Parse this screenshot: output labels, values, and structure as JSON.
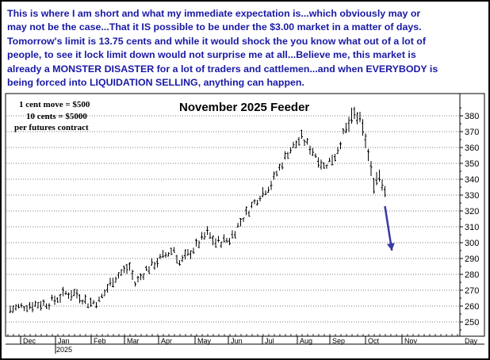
{
  "annotation": {
    "lines": [
      "This is where I am short and what my immediate expectation is...which obviously may or",
      "may not be the case...That it IS possible to be under the $3.00 market in a  matter of days.",
      "Tomorrow's limit is 13.75 cents and while it would shock the you know what out of a lot of",
      "people, to see it lock limit down would not surprise me at all...Believe me, this market is",
      "already a MONSTER DISASTER for a lot of traders and cattlemen...and when EVERYBODY is",
      "being forced into LIQUIDATION SELLING, anything can happen."
    ],
    "color": "#1a1aa6"
  },
  "chart_data": {
    "type": "ohlc",
    "title": "November 2025 Feeder",
    "info_lines": [
      "1 cent move = $500",
      "10 cents = $5000",
      "per futures contract"
    ],
    "ylim": [
      242,
      391
    ],
    "y_ticks": [
      250,
      260,
      270,
      280,
      290,
      300,
      310,
      320,
      330,
      340,
      350,
      360,
      370,
      380
    ],
    "x_period_label": "Day",
    "x_year_label": "2025",
    "months": [
      "Dec",
      "Jan",
      "Feb",
      "Mar",
      "Apr",
      "May",
      "Jun",
      "Jul",
      "Aug",
      "Sep",
      "Oct",
      "Nov"
    ],
    "series_color": "#000000",
    "price_path": [
      {
        "x": 0,
        "y": 258
      },
      {
        "x": 8,
        "y": 261
      },
      {
        "x": 14,
        "y": 262
      },
      {
        "x": 20,
        "y": 268
      },
      {
        "x": 24,
        "y": 268
      },
      {
        "x": 28,
        "y": 262
      },
      {
        "x": 32,
        "y": 263
      },
      {
        "x": 37,
        "y": 277
      },
      {
        "x": 43,
        "y": 285
      },
      {
        "x": 45,
        "y": 274
      },
      {
        "x": 49,
        "y": 283
      },
      {
        "x": 55,
        "y": 291
      },
      {
        "x": 59,
        "y": 296
      },
      {
        "x": 61,
        "y": 287
      },
      {
        "x": 66,
        "y": 296
      },
      {
        "x": 71,
        "y": 306
      },
      {
        "x": 74,
        "y": 300
      },
      {
        "x": 79,
        "y": 302
      },
      {
        "x": 84,
        "y": 316
      },
      {
        "x": 90,
        "y": 330
      },
      {
        "x": 94,
        "y": 337
      },
      {
        "x": 100,
        "y": 357
      },
      {
        "x": 105,
        "y": 366
      },
      {
        "x": 109,
        "y": 358
      },
      {
        "x": 113,
        "y": 348
      },
      {
        "x": 117,
        "y": 355
      },
      {
        "x": 120,
        "y": 368
      },
      {
        "x": 124,
        "y": 381
      },
      {
        "x": 126,
        "y": 377
      },
      {
        "x": 128,
        "y": 365
      },
      {
        "x": 130,
        "y": 345
      },
      {
        "x": 131,
        "y": 338
      },
      {
        "x": 133,
        "y": 343
      },
      {
        "x": 135,
        "y": 333
      }
    ],
    "projection": {
      "from": {
        "x": 135,
        "y": 323
      },
      "to": {
        "x": 137.5,
        "y": 295
      },
      "color": "#3a3aa6"
    }
  }
}
